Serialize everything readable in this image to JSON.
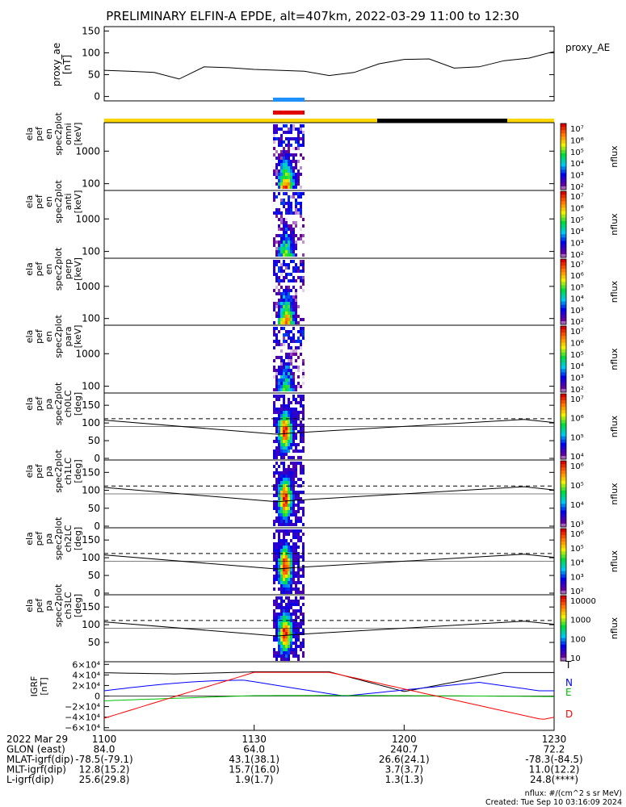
{
  "title": "PRELIMINARY ELFIN-A EPDE, alt=407km, 2022-03-29 11:00 to 12:30",
  "chart_data": [
    {
      "type": "line",
      "id": "proxy_ae",
      "ylabel": [
        "proxy_ae",
        "[nT]"
      ],
      "legend": "proxy_AE",
      "yticks": [
        "150",
        "100",
        "50",
        "0"
      ],
      "ylim": [
        -10,
        160
      ],
      "x_minutes": [
        0,
        5,
        10,
        15,
        20,
        25,
        30,
        35,
        40,
        45,
        50,
        55,
        60,
        65,
        70,
        75,
        80,
        85,
        90
      ],
      "values": [
        60,
        58,
        55,
        40,
        68,
        66,
        62,
        60,
        58,
        48,
        55,
        75,
        85,
        86,
        65,
        68,
        82,
        88,
        103
      ]
    },
    {
      "type": "heatmap",
      "id": "spec_omni",
      "ylabel": [
        "ela",
        "pef",
        "en",
        "spec2plot",
        "omni",
        "[keV]"
      ],
      "yticks": [
        "1000",
        "100"
      ],
      "colorbar": {
        "label": "nflux",
        "ticks": [
          "10^7",
          "10^6",
          "10^5",
          "10^4",
          "10^3",
          "10^2"
        ]
      }
    },
    {
      "type": "heatmap",
      "id": "spec_anti",
      "ylabel": [
        "ela",
        "pef",
        "en",
        "spec2plot",
        "anti",
        "[keV]"
      ],
      "yticks": [
        "1000",
        "100"
      ],
      "colorbar": {
        "label": "nflux",
        "ticks": [
          "10^7",
          "10^6",
          "10^5",
          "10^4",
          "10^3",
          "10^2"
        ]
      }
    },
    {
      "type": "heatmap",
      "id": "spec_perp",
      "ylabel": [
        "ela",
        "pef",
        "en",
        "spec2plot",
        "perp",
        "[keV]"
      ],
      "yticks": [
        "1000",
        "100"
      ],
      "colorbar": {
        "label": "nflux",
        "ticks": [
          "10^7",
          "10^6",
          "10^5",
          "10^4",
          "10^3",
          "10^2"
        ]
      }
    },
    {
      "type": "heatmap",
      "id": "spec_para",
      "ylabel": [
        "ela",
        "pef",
        "en",
        "spec2plot",
        "para",
        "[keV]"
      ],
      "yticks": [
        "1000",
        "100"
      ],
      "colorbar": {
        "label": "nflux",
        "ticks": [
          "10^7",
          "10^6",
          "10^5",
          "10^4",
          "10^3",
          "10^2"
        ]
      }
    },
    {
      "type": "heatmap",
      "id": "pa_ch0",
      "ylabel": [
        "ela",
        "pef",
        "pa",
        "spec2plot",
        "ch0LC",
        "[deg]"
      ],
      "yticks": [
        "150",
        "100",
        "50",
        "0"
      ],
      "colorbar": {
        "label": "nflux",
        "ticks": [
          "10^7",
          "10^6",
          "10^5",
          "10^4"
        ]
      }
    },
    {
      "type": "heatmap",
      "id": "pa_ch1",
      "ylabel": [
        "ela",
        "pef",
        "pa",
        "spec2plot",
        "ch1LC",
        "[deg]"
      ],
      "yticks": [
        "150",
        "100",
        "50",
        "0"
      ],
      "colorbar": {
        "label": "nflux",
        "ticks": [
          "10^6",
          "10^5",
          "10^4",
          "10^3"
        ]
      }
    },
    {
      "type": "heatmap",
      "id": "pa_ch2",
      "ylabel": [
        "ela",
        "pef",
        "pa",
        "spec2plot",
        "ch2LC",
        "[deg]"
      ],
      "yticks": [
        "150",
        "100",
        "50",
        "0"
      ],
      "colorbar": {
        "label": "nflux",
        "ticks": [
          "10^6",
          "10^5",
          "10^4",
          "10^3",
          "10^2"
        ]
      }
    },
    {
      "type": "heatmap",
      "id": "pa_ch3",
      "ylabel": [
        "ela",
        "pef",
        "pa",
        "spec2plot",
        "ch3LC",
        "[deg]"
      ],
      "yticks": [
        "150",
        "100",
        "50"
      ],
      "colorbar": {
        "label": "nflux",
        "ticks": [
          "10000",
          "1000",
          "100",
          "10"
        ]
      }
    },
    {
      "type": "line",
      "id": "igrf",
      "ylabel": [
        "IGRF",
        "[nT]"
      ],
      "yticks": [
        "6×10^4",
        "4×10^4",
        "2×10^4",
        "0",
        "−2×10^4",
        "−4×10^4",
        "−6×10^4"
      ],
      "legend": [
        "T",
        "N",
        "E",
        "D"
      ],
      "series_colors": [
        "#000000",
        "#0000ff",
        "#00c000",
        "#ff0000"
      ]
    }
  ],
  "x_axis": {
    "ticks": [
      "1100",
      "1130",
      "1200",
      "1230"
    ],
    "rows": [
      {
        "label": "2022 Mar 29",
        "values": [
          "1100",
          "1130",
          "1200",
          "1230"
        ]
      },
      {
        "label": "GLON (east)",
        "values": [
          "84.0",
          "64.0",
          "240.7",
          "72.2"
        ]
      },
      {
        "label": "MLAT-igrf(dip)",
        "values": [
          "-78.5(-79.1)",
          "43.1(38.1)",
          "26.6(24.1)",
          "-78.3(-84.5)"
        ]
      },
      {
        "label": "MLT-igrf(dip)",
        "values": [
          "12.8(15.2)",
          "15.7(16.0)",
          "3.7(3.7)",
          "11.0(12.2)"
        ]
      },
      {
        "label": "L-igrf(dip)",
        "values": [
          "25.6(29.8)",
          "1.9(1.7)",
          "1.3(1.3)",
          "24.8(****)"
        ]
      }
    ]
  },
  "footer": {
    "units": "nflux: #/(cm^2 s sr MeV)",
    "created": "Created: Tue Sep 10 03:16:09 2024"
  }
}
